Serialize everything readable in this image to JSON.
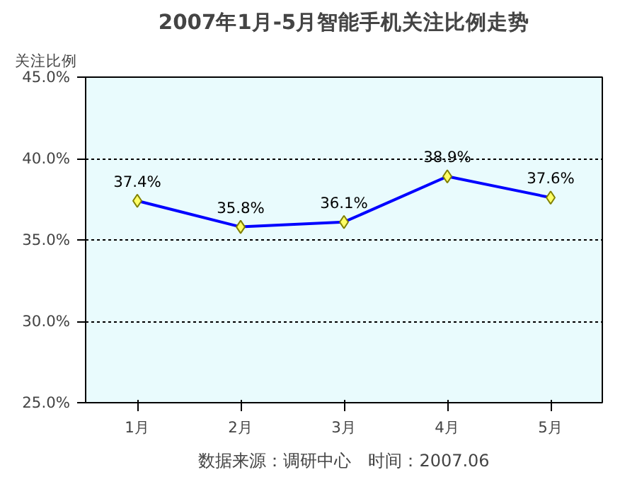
{
  "chart_data": {
    "type": "line",
    "title": "2007年1月-5月智能手机关注比例走势",
    "ylabel": "关注比例",
    "categories": [
      "1月",
      "2月",
      "3月",
      "4月",
      "5月"
    ],
    "series": [
      {
        "color": "#0000ff",
        "values": [
          37.4,
          35.8,
          36.1,
          38.9,
          37.6
        ],
        "value_labels": [
          "37.4%",
          "35.8%",
          "36.1%",
          "38.9%",
          "37.6%"
        ]
      }
    ],
    "ylim": [
      25,
      45
    ],
    "yticks": [
      {
        "value": 25,
        "label": "25.0%"
      },
      {
        "value": 30,
        "label": "30.0%"
      },
      {
        "value": 35,
        "label": "35.0%"
      },
      {
        "value": 40,
        "label": "40.0%"
      },
      {
        "value": 45,
        "label": "45.0%"
      }
    ],
    "grid": "y",
    "marker": "diamond",
    "line_style": "solid",
    "annotations": [
      "数据来源：调研中心　时间：2007.06"
    ]
  }
}
